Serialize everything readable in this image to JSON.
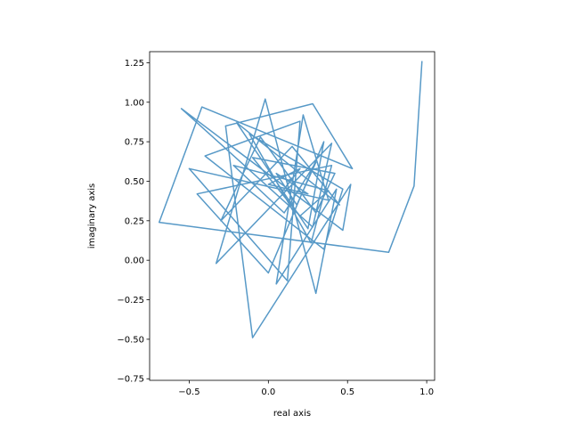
{
  "chart_data": {
    "type": "line",
    "title": "",
    "xlabel": "real axis",
    "ylabel": "imaginary axis",
    "xlim": [
      -0.75,
      1.05
    ],
    "ylim": [
      -0.76,
      1.32
    ],
    "xticks": [
      -0.5,
      0.0,
      0.5,
      1.0
    ],
    "xtick_labels": [
      "−0.5",
      "0.0",
      "0.5",
      "1.0"
    ],
    "yticks": [
      -0.75,
      -0.5,
      -0.25,
      0.0,
      0.25,
      0.5,
      0.75,
      1.0,
      1.25
    ],
    "ytick_labels": [
      "−0.75",
      "−0.50",
      "−0.25",
      "0.00",
      "0.25",
      "0.50",
      "0.75",
      "1.00",
      "1.25"
    ],
    "grid": false,
    "legend": "none",
    "series": [
      {
        "color": "#1f77b4",
        "alpha": 0.75,
        "x": [
          0.97,
          0.92,
          0.76,
          -0.69,
          -0.42,
          0.53,
          0.28,
          -0.27,
          -0.1,
          0.52,
          0.47,
          -0.55,
          0.28,
          0.4,
          -0.33,
          -0.02,
          0.3,
          0.43,
          0.05,
          0.22,
          0.38,
          -0.5,
          0.12,
          0.2,
          -0.4,
          0.35,
          0.47,
          -0.12,
          0.27,
          0.4,
          -0.45,
          0.0,
          0.35,
          0.25,
          -0.2,
          0.45,
          0.15,
          -0.3,
          -0.05,
          0.3,
          0.42,
          -0.1,
          0.2,
          0.38,
          -0.22,
          0.1,
          0.3,
          0.18,
          0.05,
          0.25,
          0.0,
          0.2,
          0.1,
          0.15,
          0.12
        ],
        "y": [
          1.26,
          0.47,
          0.05,
          0.24,
          0.97,
          0.58,
          0.99,
          0.85,
          -0.49,
          0.48,
          0.19,
          0.96,
          0.21,
          0.74,
          -0.02,
          1.02,
          -0.21,
          0.45,
          -0.15,
          0.92,
          0.38,
          0.58,
          -0.13,
          0.88,
          0.66,
          0.07,
          0.45,
          0.8,
          0.11,
          0.6,
          0.42,
          -0.08,
          0.75,
          0.2,
          0.87,
          0.35,
          0.72,
          0.25,
          0.78,
          0.3,
          0.55,
          0.65,
          0.28,
          0.44,
          0.6,
          0.3,
          0.62,
          0.35,
          0.55,
          0.42,
          0.48,
          0.58,
          0.45,
          0.52,
          0.5
        ]
      }
    ]
  }
}
